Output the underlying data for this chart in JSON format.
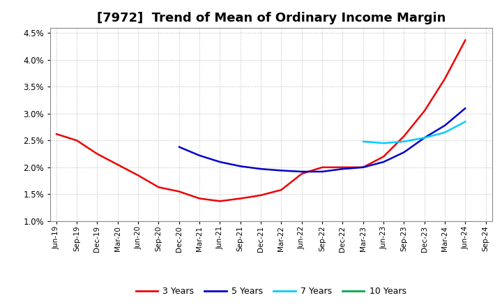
{
  "title": "[7972]  Trend of Mean of Ordinary Income Margin",
  "title_fontsize": 13,
  "background_color": "#ffffff",
  "plot_bg_color": "#ffffff",
  "grid_color": "#999999",
  "ylim": [
    0.01,
    0.046
  ],
  "yticks": [
    0.01,
    0.015,
    0.02,
    0.025,
    0.03,
    0.035,
    0.04,
    0.045
  ],
  "x_labels": [
    "Jun-19",
    "Sep-19",
    "Dec-19",
    "Mar-20",
    "Jun-20",
    "Sep-20",
    "Dec-20",
    "Mar-21",
    "Jun-21",
    "Sep-21",
    "Dec-21",
    "Mar-22",
    "Jun-22",
    "Sep-22",
    "Dec-22",
    "Mar-23",
    "Jun-23",
    "Sep-23",
    "Dec-23",
    "Mar-24",
    "Jun-24",
    "Sep-24"
  ],
  "series": {
    "3 Years": {
      "color": "#ee0000",
      "values": [
        0.0262,
        0.025,
        0.0225,
        0.0205,
        0.0185,
        0.0163,
        0.0155,
        0.0142,
        0.0137,
        0.0142,
        0.0148,
        0.0158,
        0.0188,
        0.02,
        0.02,
        0.02,
        0.022,
        0.0258,
        0.0305,
        0.0365,
        0.0437,
        null
      ]
    },
    "5 Years": {
      "color": "#0000cc",
      "values": [
        null,
        null,
        null,
        null,
        null,
        null,
        0.0238,
        0.0222,
        0.021,
        0.0202,
        0.0197,
        0.0194,
        0.0192,
        0.0192,
        0.0197,
        0.02,
        0.021,
        0.0228,
        0.0255,
        0.0278,
        0.031,
        null
      ]
    },
    "7 Years": {
      "color": "#00ccff",
      "values": [
        null,
        null,
        null,
        null,
        null,
        null,
        null,
        null,
        null,
        null,
        null,
        null,
        null,
        null,
        null,
        0.0248,
        0.0245,
        0.0248,
        0.0255,
        0.0265,
        0.0285,
        null
      ]
    },
    "10 Years": {
      "color": "#00aa44",
      "values": [
        null,
        null,
        null,
        null,
        null,
        null,
        null,
        null,
        null,
        null,
        null,
        null,
        null,
        null,
        null,
        null,
        null,
        null,
        null,
        null,
        null,
        null
      ]
    }
  },
  "legend_labels": [
    "3 Years",
    "5 Years",
    "7 Years",
    "10 Years"
  ],
  "legend_colors": [
    "#ee0000",
    "#0000cc",
    "#00ccff",
    "#00aa44"
  ]
}
